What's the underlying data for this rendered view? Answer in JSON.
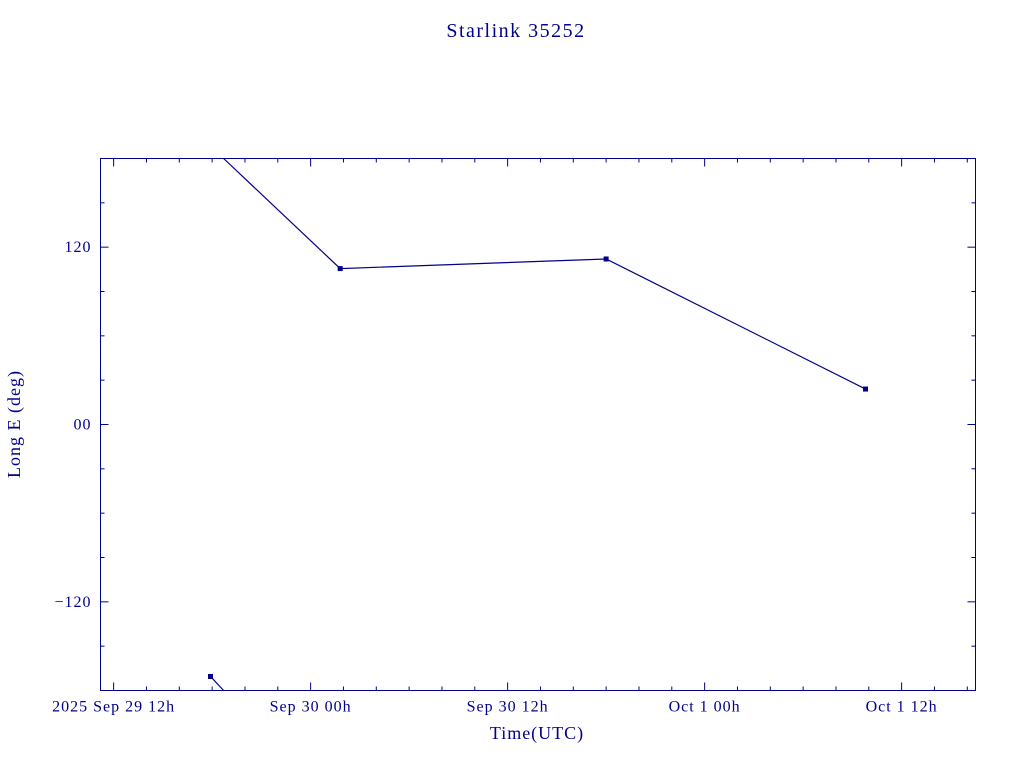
{
  "page": {
    "background": "#ffffff",
    "accent_color": "#00008b"
  },
  "chart_data": {
    "type": "line",
    "title": "Starlink 35252",
    "xlabel": "Time(UTC)",
    "ylabel": "Long E (deg)",
    "line_color": "#00008b",
    "grid": false,
    "legend": false,
    "x_axis": {
      "unit": "hours since 2025 Sep 29 12h UTC",
      "min": -0.8,
      "max": 52.5,
      "minor_step": 2,
      "major_ticks": [
        {
          "x": 0,
          "label": "2025 Sep 29 12h"
        },
        {
          "x": 12,
          "label": "Sep 30 00h"
        },
        {
          "x": 24,
          "label": "Sep 30 12h"
        },
        {
          "x": 36,
          "label": "Oct 1 00h"
        },
        {
          "x": 48,
          "label": "Oct 1 12h"
        }
      ]
    },
    "y_axis": {
      "min": -180,
      "max": 180,
      "minor_step": 30,
      "major_ticks": [
        {
          "y": 120,
          "label": "120"
        },
        {
          "y": 0,
          "label": "00"
        },
        {
          "y": -120,
          "label": "−120"
        }
      ]
    },
    "series": [
      {
        "name": "longitude-wrap-segment",
        "points": [
          [
            5.9,
            -170.5
          ],
          [
            6.7,
            -180
          ]
        ]
      },
      {
        "name": "longitude-main-segment",
        "points": [
          [
            6.7,
            180
          ],
          [
            13.8,
            105.5
          ],
          [
            30.0,
            112.0
          ],
          [
            45.8,
            24.0
          ]
        ]
      }
    ],
    "markers": {
      "shape": "square",
      "size": 5,
      "points": [
        [
          5.9,
          -170.5
        ],
        [
          13.8,
          105.5
        ],
        [
          30.0,
          112.0
        ],
        [
          45.8,
          24.0
        ]
      ]
    }
  }
}
